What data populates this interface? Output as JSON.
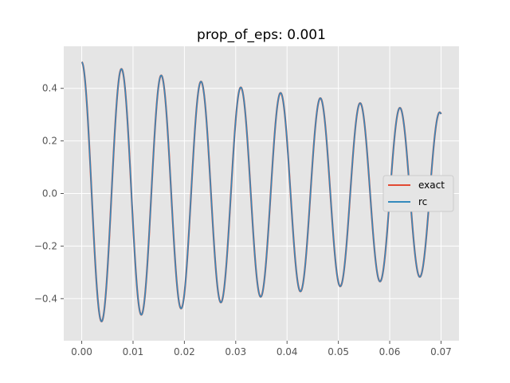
{
  "chart_data": {
    "type": "line",
    "title": "prop_of_eps: 0.001",
    "xlabel": "",
    "ylabel": "",
    "xlim": [
      -0.0035,
      0.0735
    ],
    "ylim": [
      -0.56,
      0.56
    ],
    "xticks": [
      0.0,
      0.01,
      0.02,
      0.03,
      0.04,
      0.05,
      0.06,
      0.07
    ],
    "xtick_labels": [
      "0.00",
      "0.01",
      "0.02",
      "0.03",
      "0.04",
      "0.05",
      "0.06",
      "0.07"
    ],
    "yticks": [
      -0.4,
      -0.2,
      0.0,
      0.2,
      0.4
    ],
    "ytick_labels": [
      "−0.4",
      "−0.2",
      "0.0",
      "0.2",
      "0.4"
    ],
    "grid": true,
    "legend_position": "right",
    "curve": {
      "x_start": 0.0,
      "x_end": 0.07,
      "initial_amplitude": 0.5,
      "period": 0.00775,
      "damping_rate": 6.9,
      "note_visible_peaks": [
        0.5,
        0.49,
        0.47,
        0.45,
        0.42,
        0.395,
        0.365,
        0.34,
        0.315
      ]
    },
    "series": [
      {
        "name": "exact",
        "color": "#E24A33",
        "phase_offset": 0.0
      },
      {
        "name": "rc",
        "color": "#348ABD",
        "phase_offset": 0.0
      }
    ]
  }
}
